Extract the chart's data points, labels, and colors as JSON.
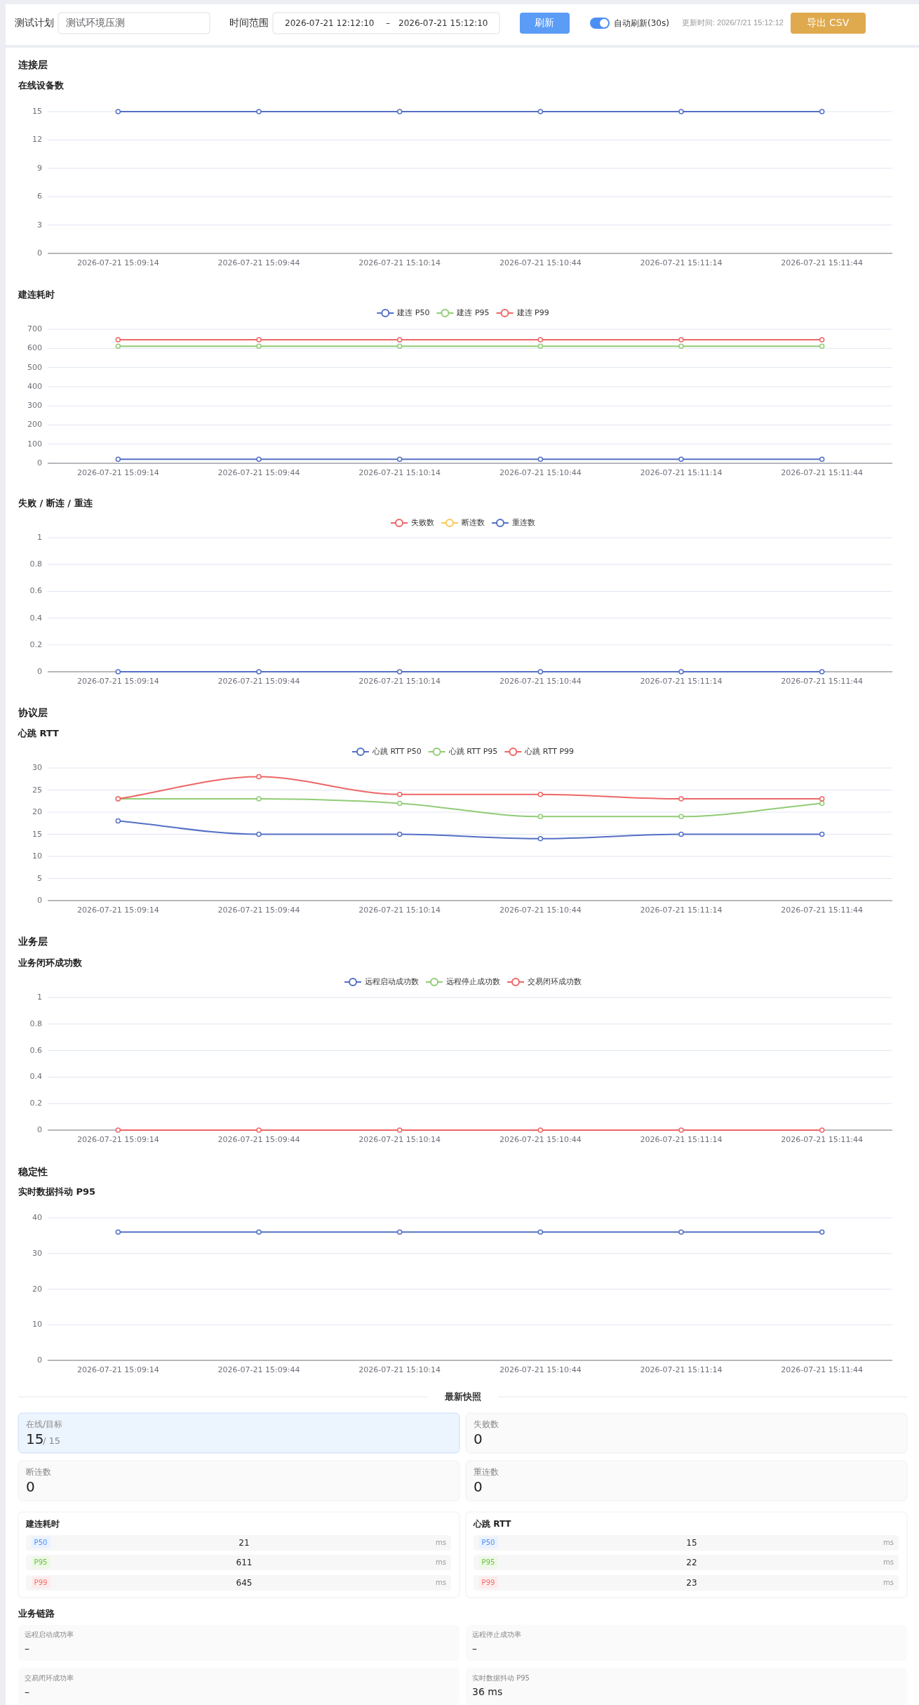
{
  "chart_data": [
    {
      "type": "other",
      "annotations": [
        "测试计划",
        "测试环境压测",
        "时间范围",
        "2026-07-21 12:12:10",
        "–",
        "2026-07-21 15:12:10",
        "刷新",
        "自动刷新(30s)",
        "更新时间: 2026/7/21 15:12:12",
        "导出 CSV"
      ]
    },
    {
      "type": "line",
      "subtitle": "连接层",
      "title": "在线设备数",
      "categories": [
        "2026-07-21 15:09:14",
        "2026-07-21 15:09:44",
        "2026-07-21 15:10:14",
        "2026-07-21 15:10:44",
        "2026-07-21 15:11:14",
        "2026-07-21 15:11:44"
      ],
      "series": [
        {
          "color": "#5470c6",
          "values": [
            15,
            15,
            15,
            15,
            15,
            15
          ]
        }
      ],
      "ylim": [
        0,
        15
      ],
      "yticks": [
        0,
        3,
        6,
        9,
        12,
        15
      ],
      "grid": "y",
      "marker": "circle"
    },
    {
      "type": "line",
      "title": "建连耗时",
      "categories": [
        "2026-07-21 15:09:14",
        "2026-07-21 15:09:44",
        "2026-07-21 15:10:14",
        "2026-07-21 15:10:44",
        "2026-07-21 15:11:14",
        "2026-07-21 15:11:44"
      ],
      "series": [
        {
          "name": "建连 P50",
          "color": "#5470c6",
          "values": [
            21,
            21,
            21,
            21,
            21,
            21
          ]
        },
        {
          "name": "建连 P95",
          "color": "#91cc75",
          "values": [
            611,
            611,
            611,
            611,
            611,
            611
          ]
        },
        {
          "name": "建连 P99",
          "color": "#ee6666",
          "values": [
            645,
            645,
            645,
            645,
            645,
            645
          ]
        }
      ],
      "ylim": [
        0,
        700
      ],
      "yticks": [
        0,
        100,
        200,
        300,
        400,
        500,
        600,
        700
      ],
      "grid": "y",
      "legend": "top",
      "marker": "circle"
    },
    {
      "type": "line",
      "title": "失败 / 断连 / 重连",
      "categories": [
        "2026-07-21 15:09:14",
        "2026-07-21 15:09:44",
        "2026-07-21 15:10:14",
        "2026-07-21 15:10:44",
        "2026-07-21 15:11:14",
        "2026-07-21 15:11:44"
      ],
      "series": [
        {
          "name": "失败数",
          "color": "#ee6666",
          "values": [
            null,
            null,
            null,
            null,
            null,
            null
          ]
        },
        {
          "name": "断连数",
          "color": "#fac858",
          "values": [
            null,
            null,
            null,
            null,
            null,
            null
          ]
        },
        {
          "name": "重连数",
          "color": "#5470c6",
          "values": [
            0,
            0,
            0,
            0,
            0,
            0
          ]
        }
      ],
      "ylim": [
        0,
        1
      ],
      "yticks": [
        0,
        0.2,
        0.4,
        0.6,
        0.8,
        1
      ],
      "grid": "y",
      "legend": "top",
      "marker": "circle"
    },
    {
      "type": "line",
      "subtitle": "协议层",
      "title": "心跳 RTT",
      "categories": [
        "2026-07-21 15:09:14",
        "2026-07-21 15:09:44",
        "2026-07-21 15:10:14",
        "2026-07-21 15:10:44",
        "2026-07-21 15:11:14",
        "2026-07-21 15:11:44"
      ],
      "series": [
        {
          "name": "心跳 RTT P50",
          "color": "#5470c6",
          "values": [
            18,
            15,
            15,
            14,
            15,
            15
          ]
        },
        {
          "name": "心跳 RTT P95",
          "color": "#91cc75",
          "values": [
            23,
            23,
            22,
            19,
            19,
            22
          ]
        },
        {
          "name": "心跳 RTT P99",
          "color": "#ee6666",
          "values": [
            23,
            28,
            24,
            24,
            23,
            23
          ]
        }
      ],
      "ylim": [
        0,
        30
      ],
      "yticks": [
        0,
        5,
        10,
        15,
        20,
        25,
        30
      ],
      "grid": "y",
      "legend": "top",
      "marker": "circle"
    },
    {
      "type": "line",
      "subtitle": "业务层",
      "title": "业务闭环成功数",
      "categories": [
        "2026-07-21 15:09:14",
        "2026-07-21 15:09:44",
        "2026-07-21 15:10:14",
        "2026-07-21 15:10:44",
        "2026-07-21 15:11:14",
        "2026-07-21 15:11:44"
      ],
      "series": [
        {
          "name": "远程启动成功数",
          "color": "#5470c6",
          "values": [
            null,
            null,
            null,
            null,
            null,
            null
          ]
        },
        {
          "name": "远程停止成功数",
          "color": "#91cc75",
          "values": [
            null,
            null,
            null,
            null,
            null,
            null
          ]
        },
        {
          "name": "交易闭环成功数",
          "color": "#ee6666",
          "values": [
            0,
            0,
            0,
            0,
            0,
            0
          ]
        }
      ],
      "ylim": [
        0,
        1
      ],
      "yticks": [
        0,
        0.2,
        0.4,
        0.6,
        0.8,
        1
      ],
      "grid": "y",
      "legend": "top",
      "marker": "circle"
    },
    {
      "type": "line",
      "subtitle": "稳定性",
      "title": "实时数据抖动 P95",
      "categories": [
        "2026-07-21 15:09:14",
        "2026-07-21 15:09:44",
        "2026-07-21 15:10:14",
        "2026-07-21 15:10:44",
        "2026-07-21 15:11:14",
        "2026-07-21 15:11:44"
      ],
      "series": [
        {
          "color": "#5470c6",
          "values": [
            36,
            36,
            36,
            36,
            36,
            36
          ]
        }
      ],
      "ylim": [
        0,
        40
      ],
      "yticks": [
        0,
        10,
        20,
        30,
        40
      ],
      "grid": "y",
      "marker": "circle"
    },
    {
      "type": "other",
      "title": "最新快照",
      "annotations": [
        "在线/目标",
        "15",
        "/ 15",
        "失败数",
        "0",
        "断连数",
        "0",
        "重连数",
        "0",
        "建连耗时",
        "P50",
        "21",
        "ms",
        "P95",
        "611",
        "ms",
        "P99",
        "645",
        "ms",
        "心跳 RTT",
        "P50",
        "15",
        "ms",
        "P95",
        "22",
        "ms",
        "P99",
        "23",
        "ms",
        "业务链路",
        "远程启动成功率",
        "–",
        "远程停止成功率",
        "–",
        "交易闭环成功率",
        "–",
        "实时数据抖动 P95",
        "36 ms"
      ]
    }
  ]
}
